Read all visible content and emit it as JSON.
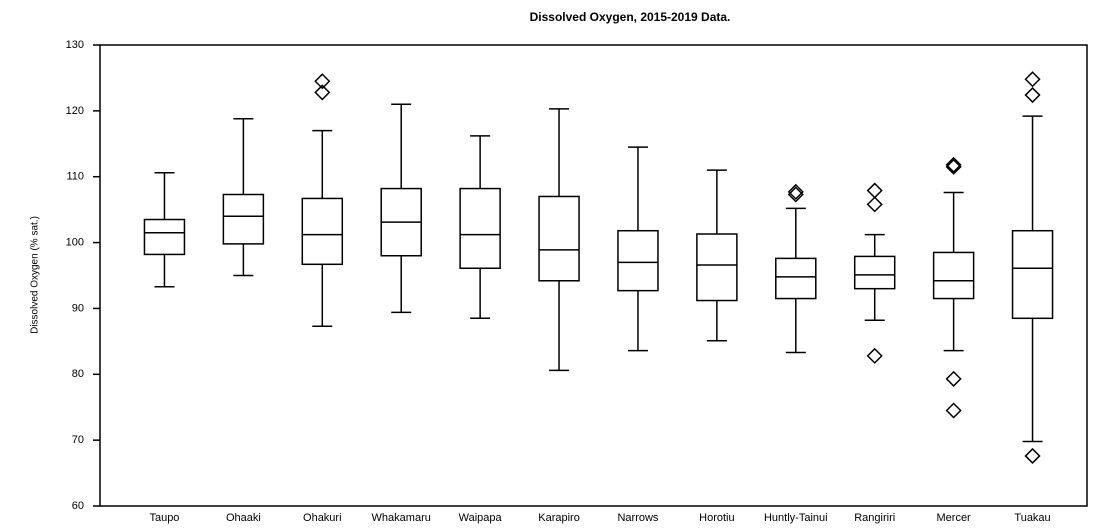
{
  "chart_data": {
    "type": "box",
    "title": "Dissolved Oxygen, 2015-2019 Data.",
    "y_label": "Dissolved Oxygen (% sat.)",
    "categories": [
      "Taupo",
      "Ohaaki",
      "Ohakuri",
      "Whakamaru",
      "Waipapa",
      "Karapiro",
      "Narrows",
      "Horotiu",
      "Huntly-Tainui",
      "Rangiriri",
      "Mercer",
      "Tuakau"
    ],
    "whisker_low": [
      93.3,
      95,
      87.3,
      89.4,
      88.5,
      80.6,
      83.6,
      85.1,
      83.3,
      88.2,
      83.6,
      69.8
    ],
    "q1": [
      98.2,
      99.8,
      96.7,
      98,
      96.1,
      94.2,
      92.7,
      91.2,
      91.5,
      93,
      91.5,
      88.5
    ],
    "median": [
      101.5,
      104,
      101.2,
      103.1,
      101.2,
      98.9,
      97,
      96.6,
      94.8,
      95.1,
      94.2,
      96.1
    ],
    "q3": [
      103.5,
      107.3,
      106.7,
      108.2,
      108.2,
      107,
      101.8,
      101.3,
      97.6,
      97.9,
      98.5,
      101.8
    ],
    "whisker_high": [
      110.6,
      118.8,
      117,
      121,
      116.2,
      120.3,
      114.5,
      111,
      105.2,
      101.2,
      107.6,
      119.2
    ],
    "outliers": [
      [],
      [],
      [
        122.8,
        124.5
      ],
      [],
      [],
      [],
      [],
      [],
      [
        107.3,
        107.7
      ],
      [
        82.8,
        105.8,
        107.9
      ],
      [
        74.5,
        79.3,
        111.5,
        111.8
      ],
      [
        67.6,
        122.4,
        124.8
      ]
    ],
    "color": "#000000",
    "ylim": [
      60,
      130
    ],
    "yticks": [
      60,
      70,
      80,
      90,
      100,
      110,
      120,
      130
    ]
  }
}
